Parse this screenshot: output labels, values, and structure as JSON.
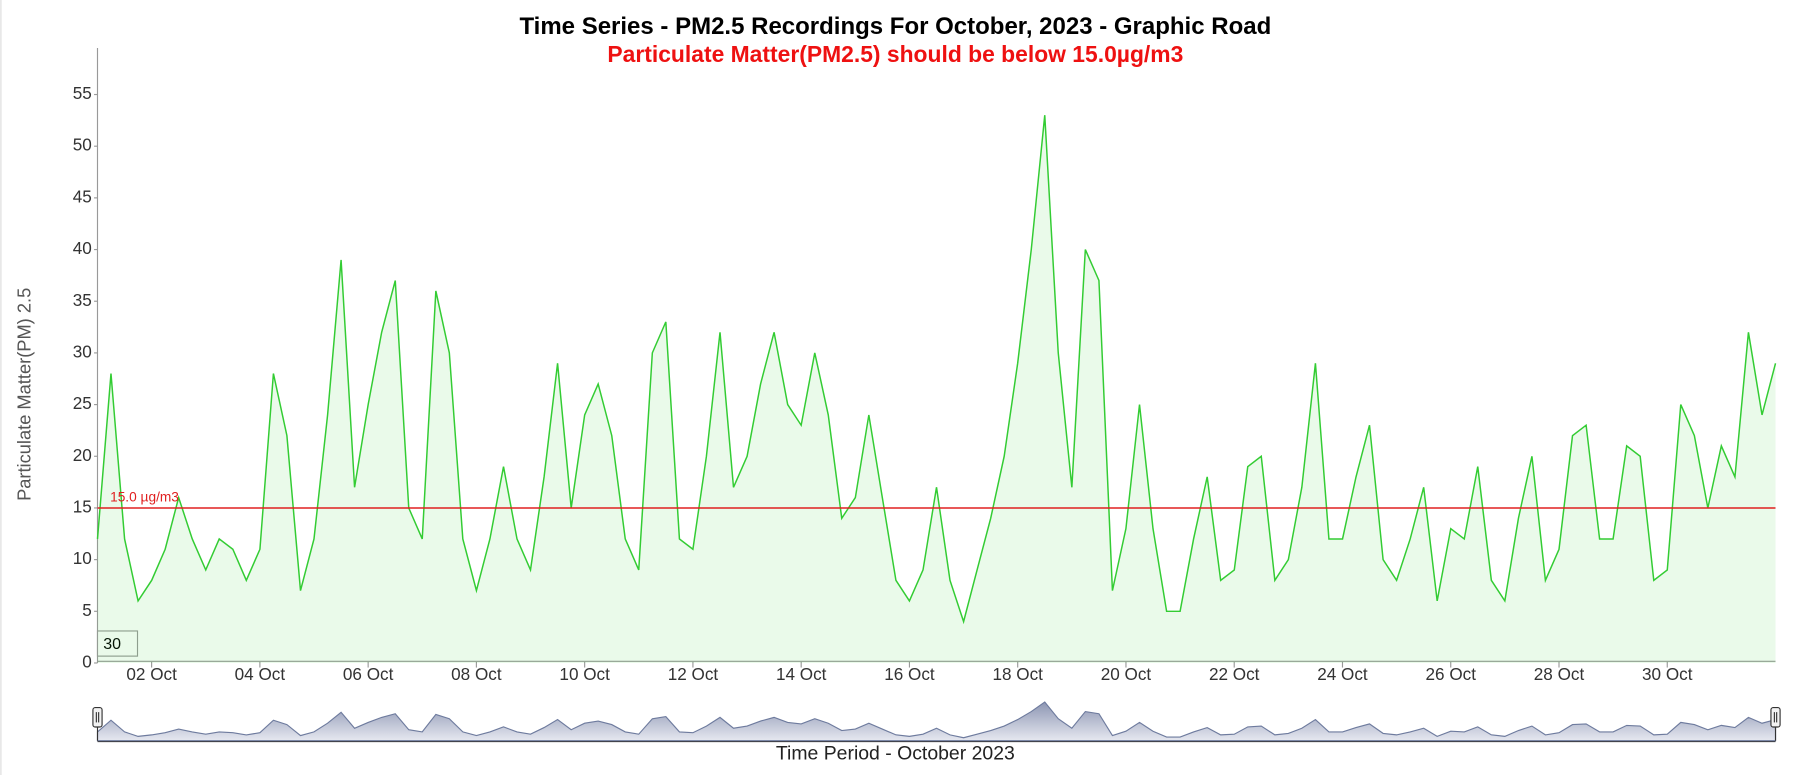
{
  "chart_data": {
    "type": "area",
    "title": "Time Series - PM2.5 Recordings For October, 2023 - Graphic Road",
    "subtitle": "Particulate Matter(PM2.5) should be below 15.0µg/m3",
    "y_label": "Particulate Matter(PM) 2.5",
    "x_label": "Time Period - October 2023",
    "zoom_box": "30",
    "color": "#33cc33",
    "ylim": [
      0,
      59.5
    ],
    "yticks": [
      0,
      5,
      10,
      15,
      20,
      25,
      30,
      35,
      40,
      45,
      50,
      55
    ],
    "xlim": [
      1,
      32
    ],
    "xticks": [
      {
        "value": 2,
        "label": "02 Oct"
      },
      {
        "value": 4,
        "label": "04 Oct"
      },
      {
        "value": 6,
        "label": "06 Oct"
      },
      {
        "value": 8,
        "label": "08 Oct"
      },
      {
        "value": 10,
        "label": "10 Oct"
      },
      {
        "value": 12,
        "label": "12 Oct"
      },
      {
        "value": 14,
        "label": "14 Oct"
      },
      {
        "value": 16,
        "label": "16 Oct"
      },
      {
        "value": 18,
        "label": "18 Oct"
      },
      {
        "value": 20,
        "label": "20 Oct"
      },
      {
        "value": 22,
        "label": "22 Oct"
      },
      {
        "value": 24,
        "label": "24 Oct"
      },
      {
        "value": 26,
        "label": "26 Oct"
      },
      {
        "value": 28,
        "label": "28 Oct"
      },
      {
        "value": 30,
        "label": "30 Oct"
      }
    ],
    "threshold": {
      "value": 15,
      "label": "15.0 µg/m3",
      "color": "#e02020"
    },
    "x": [
      1,
      1.25,
      1.5,
      1.75,
      2,
      2.25,
      2.5,
      2.75,
      3,
      3.25,
      3.5,
      3.75,
      4,
      4.25,
      4.5,
      4.75,
      5,
      5.25,
      5.5,
      5.75,
      6,
      6.25,
      6.5,
      6.75,
      7,
      7.25,
      7.5,
      7.75,
      8,
      8.25,
      8.5,
      8.75,
      9,
      9.25,
      9.5,
      9.75,
      10,
      10.25,
      10.5,
      10.75,
      11,
      11.25,
      11.5,
      11.75,
      12,
      12.25,
      12.5,
      12.75,
      13,
      13.25,
      13.5,
      13.75,
      14,
      14.25,
      14.5,
      14.75,
      15,
      15.25,
      15.5,
      15.75,
      16,
      16.25,
      16.5,
      16.75,
      17,
      17.25,
      17.5,
      17.75,
      18,
      18.25,
      18.5,
      18.75,
      19,
      19.25,
      19.5,
      19.75,
      20,
      20.25,
      20.5,
      20.75,
      21,
      21.25,
      21.5,
      21.75,
      22,
      22.25,
      22.5,
      22.75,
      23,
      23.25,
      23.5,
      23.75,
      24,
      24.25,
      24.5,
      24.75,
      25,
      25.25,
      25.5,
      25.75,
      26,
      26.25,
      26.5,
      26.75,
      27,
      27.25,
      27.5,
      27.75,
      28,
      28.25,
      28.5,
      28.75,
      29,
      29.25,
      29.5,
      29.75,
      30,
      30.25,
      30.5,
      30.75,
      31,
      31.25,
      31.5,
      31.75,
      32
    ],
    "values": [
      12,
      28,
      12,
      6,
      8,
      11,
      16,
      12,
      9,
      12,
      11,
      8,
      11,
      28,
      22,
      7,
      12,
      24,
      39,
      17,
      25,
      32,
      37,
      15,
      12,
      36,
      30,
      12,
      7,
      12,
      19,
      12,
      9,
      18,
      29,
      15,
      24,
      27,
      22,
      12,
      9,
      30,
      33,
      12,
      11,
      20,
      32,
      17,
      20,
      27,
      32,
      25,
      23,
      30,
      24,
      14,
      16,
      24,
      16,
      8,
      6,
      9,
      17,
      8,
      4,
      9,
      14,
      20,
      29,
      40,
      53,
      30,
      17,
      40,
      37,
      7,
      13,
      25,
      13,
      5,
      5,
      12,
      18,
      8,
      9,
      19,
      20,
      8,
      10,
      17,
      29,
      12,
      12,
      18,
      23,
      10,
      8,
      12,
      17,
      6,
      13,
      12,
      19,
      8,
      6,
      14,
      20,
      8,
      11,
      22,
      23,
      12,
      12,
      21,
      20,
      8,
      9,
      25,
      22,
      15,
      21,
      18,
      32,
      24,
      29
    ]
  }
}
